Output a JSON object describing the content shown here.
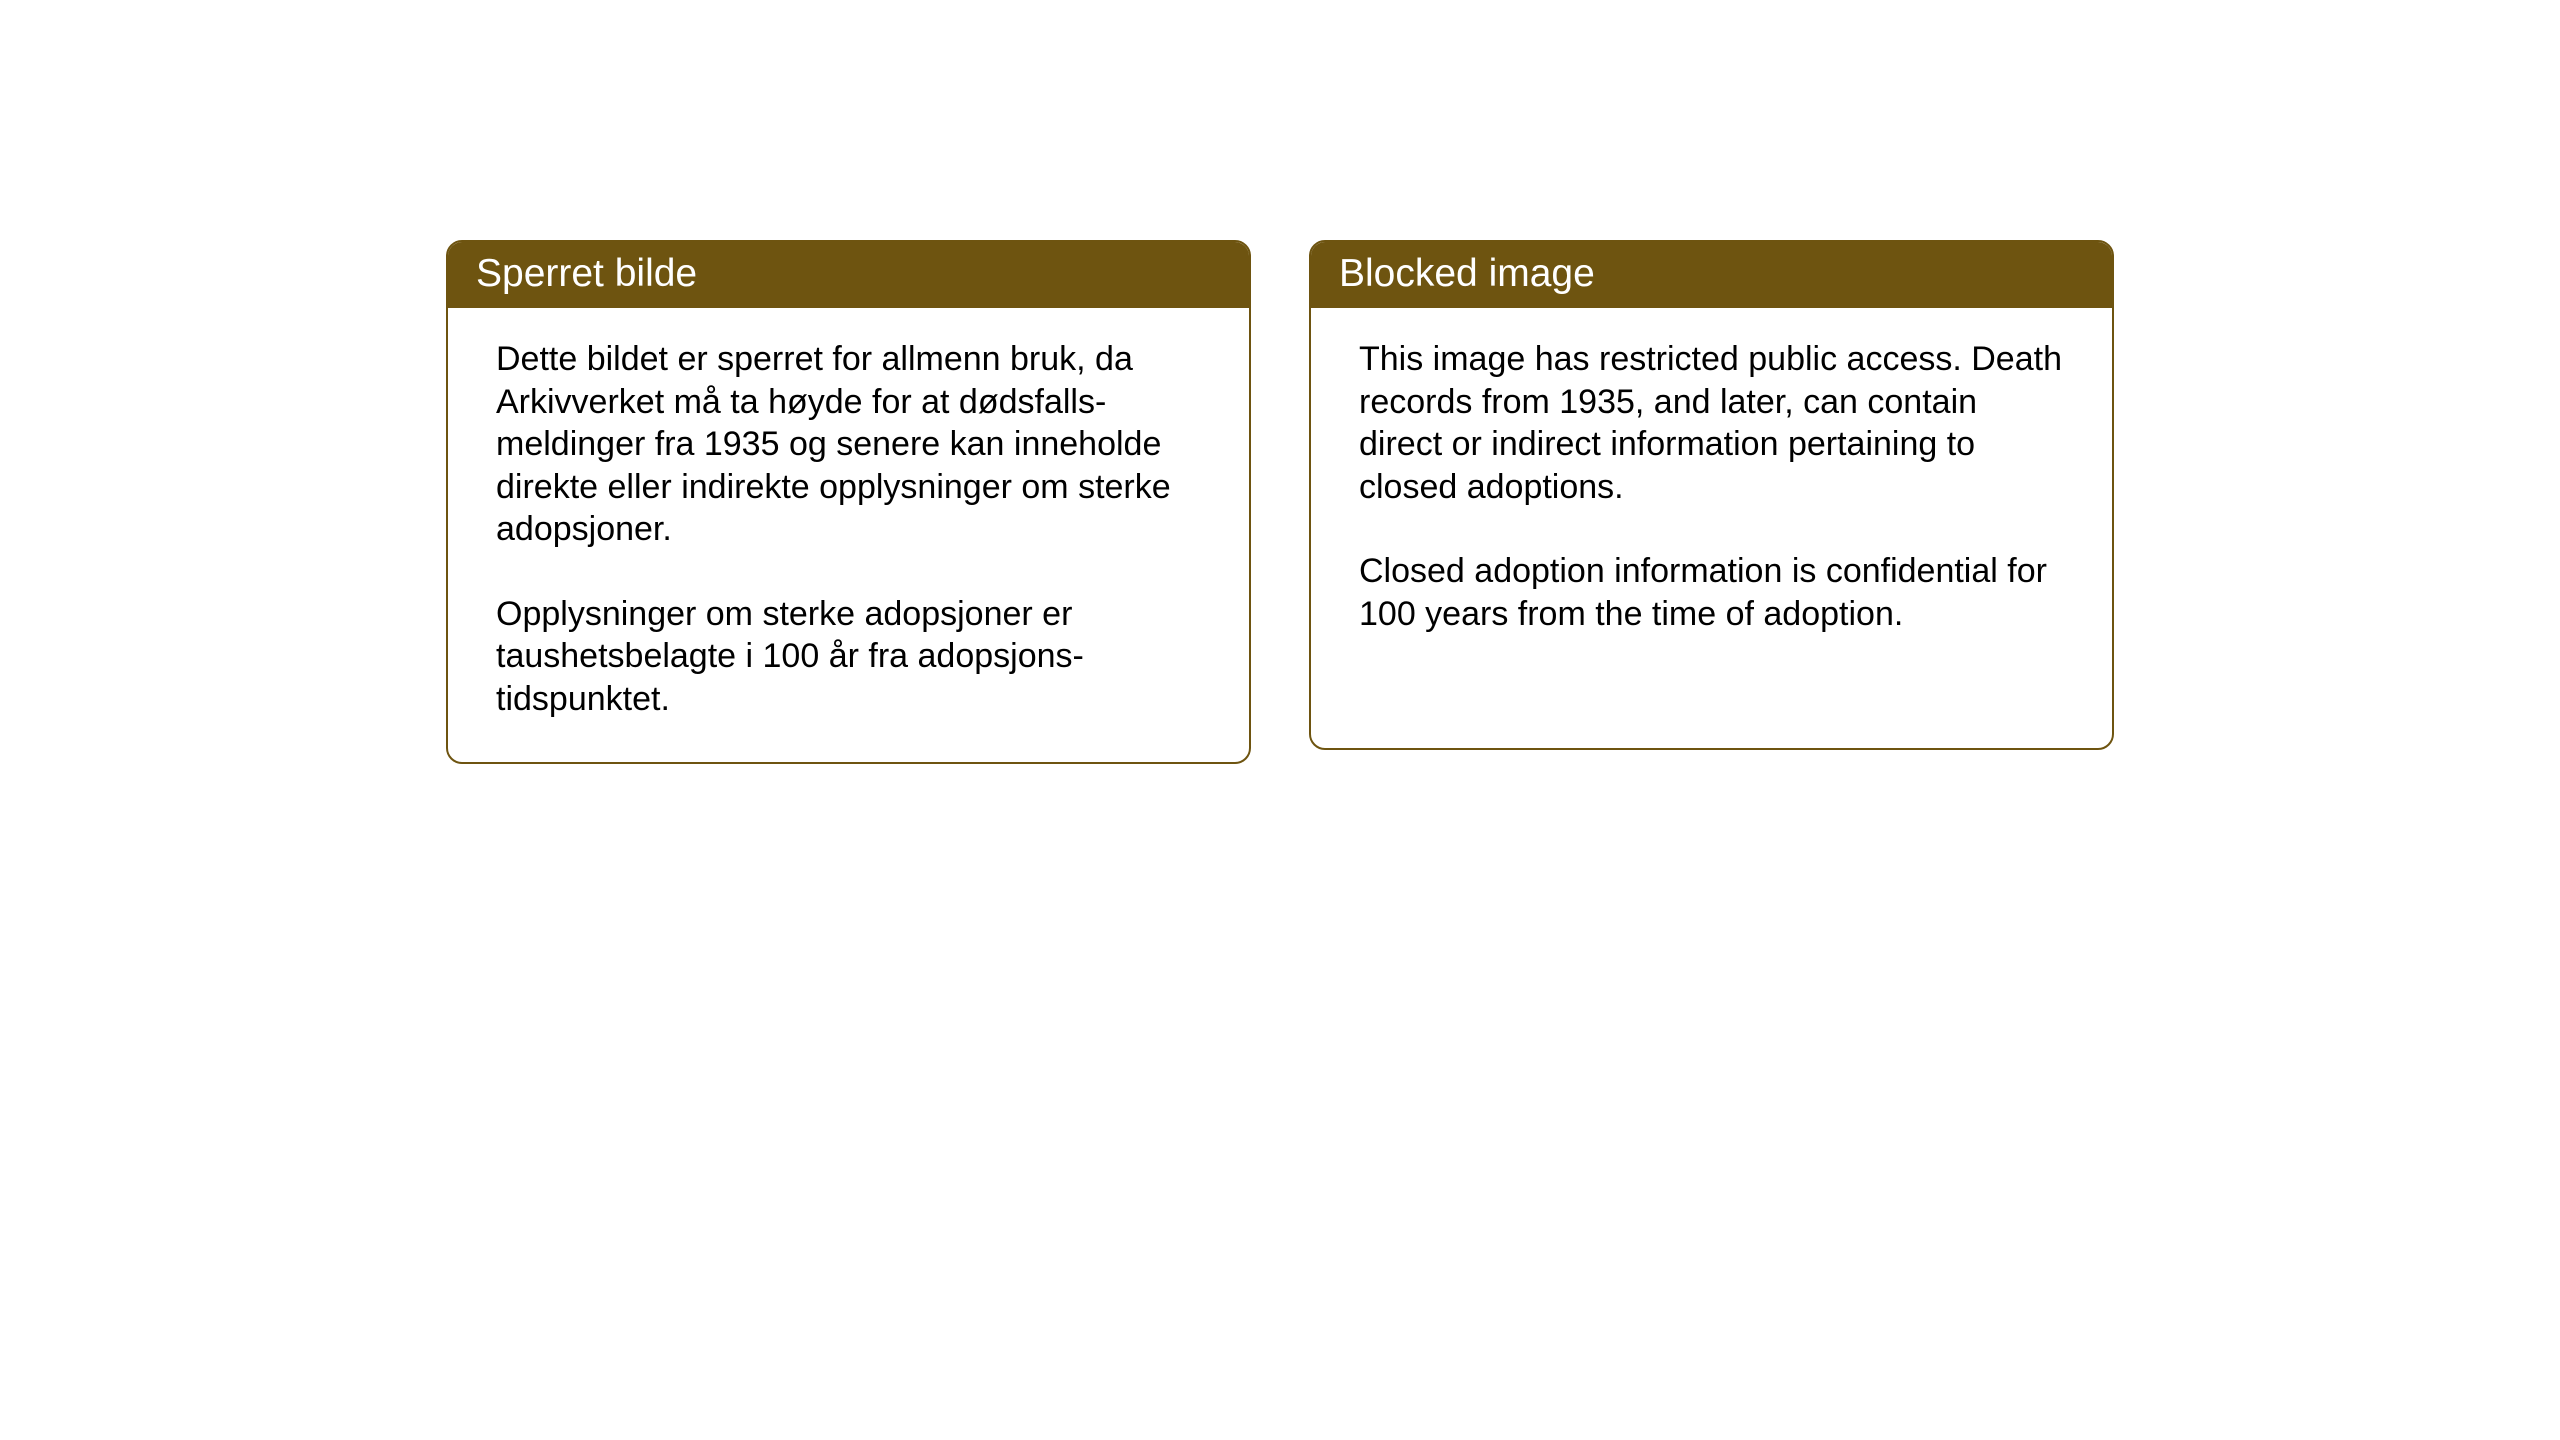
{
  "layout": {
    "background_color": "#ffffff",
    "card_border_color": "#6e5410",
    "header_bg_color": "#6e5410",
    "header_text_color": "#ffffff",
    "body_text_color": "#000000",
    "card_border_radius": 16,
    "header_fontsize": 39,
    "body_fontsize": 34
  },
  "cards": {
    "left": {
      "title": "Sperret bilde",
      "paragraph1": "Dette bildet er sperret for allmenn bruk, da Arkivverket må ta høyde for at dødsfalls-meldinger fra 1935 og senere kan inneholde direkte eller indirekte opplysninger om sterke adopsjoner.",
      "paragraph2": "Opplysninger om sterke adopsjoner er taushetsbelagte i 100 år fra adopsjons-tidspunktet."
    },
    "right": {
      "title": "Blocked image",
      "paragraph1": "This image has restricted public access. Death records from 1935, and later, can contain direct or indirect information pertaining to closed adoptions.",
      "paragraph2": "Closed adoption information is confidential for 100 years from the time of adoption."
    }
  }
}
